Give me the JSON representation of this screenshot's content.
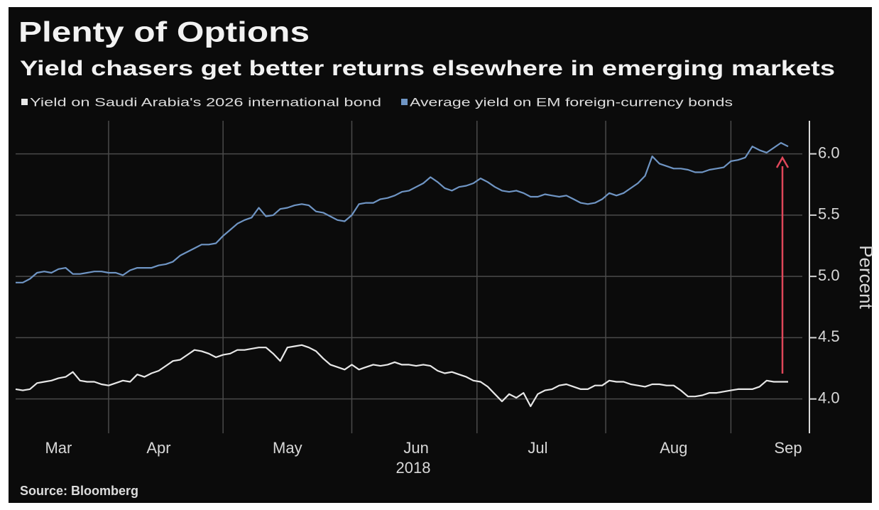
{
  "chart_data": {
    "type": "line",
    "title": "Plenty of Options",
    "subtitle": "Yield chasers get better returns elsewhere in emerging markets",
    "source": "Source: Bloomberg",
    "y_label": "Percent",
    "x_sublabel": "2018",
    "categories": [
      null,
      null,
      null,
      null,
      null,
      null,
      "Mar",
      null,
      null,
      null,
      null,
      null,
      null,
      null,
      null,
      null,
      null,
      null,
      null,
      null,
      "Apr",
      null,
      null,
      null,
      null,
      null,
      null,
      null,
      null,
      null,
      null,
      null,
      null,
      null,
      null,
      null,
      null,
      null,
      "May",
      null,
      null,
      null,
      null,
      null,
      null,
      null,
      null,
      null,
      null,
      null,
      null,
      null,
      null,
      null,
      null,
      null,
      "Jun",
      null,
      null,
      null,
      null,
      null,
      null,
      null,
      null,
      null,
      null,
      null,
      null,
      null,
      null,
      null,
      null,
      "Jul",
      null,
      null,
      null,
      null,
      null,
      null,
      null,
      null,
      null,
      null,
      null,
      null,
      null,
      null,
      null,
      null,
      null,
      null,
      "Aug",
      null,
      null,
      null,
      null,
      null,
      null,
      null,
      null,
      null,
      null,
      null,
      null,
      null,
      null,
      null,
      "Sep"
    ],
    "series": [
      {
        "name": "Yield on Saudi Arabia's 2026 international bond",
        "color": "#e8e8e8",
        "values": [
          4.08,
          4.07,
          4.08,
          4.13,
          4.14,
          4.15,
          4.17,
          4.18,
          4.22,
          4.15,
          4.14,
          4.14,
          4.12,
          4.11,
          4.13,
          4.15,
          4.14,
          4.2,
          4.18,
          4.21,
          4.23,
          4.27,
          4.31,
          4.32,
          4.36,
          4.4,
          4.39,
          4.37,
          4.34,
          4.36,
          4.37,
          4.4,
          4.4,
          4.41,
          4.42,
          4.42,
          4.37,
          4.31,
          4.42,
          4.43,
          4.44,
          4.42,
          4.39,
          4.33,
          4.28,
          4.26,
          4.24,
          4.28,
          4.24,
          4.26,
          4.28,
          4.27,
          4.28,
          4.3,
          4.28,
          4.28,
          4.27,
          4.28,
          4.27,
          4.23,
          4.21,
          4.22,
          4.2,
          4.18,
          4.15,
          4.14,
          4.1,
          4.04,
          3.98,
          4.04,
          4.01,
          4.05,
          3.94,
          4.04,
          4.07,
          4.08,
          4.11,
          4.12,
          4.1,
          4.08,
          4.08,
          4.11,
          4.11,
          4.15,
          4.14,
          4.14,
          4.12,
          4.11,
          4.1,
          4.12,
          4.12,
          4.11,
          4.11,
          4.07,
          4.02,
          4.02,
          4.03,
          4.05,
          4.05,
          4.06,
          4.07,
          4.08,
          4.08,
          4.08,
          4.1,
          4.15,
          4.14,
          4.14,
          4.14
        ]
      },
      {
        "name": "Average yield on EM foreign-currency bonds",
        "color": "#6f95c4",
        "values": [
          4.95,
          4.95,
          4.98,
          5.03,
          5.04,
          5.03,
          5.06,
          5.07,
          5.02,
          5.02,
          5.03,
          5.04,
          5.04,
          5.03,
          5.03,
          5.01,
          5.05,
          5.07,
          5.07,
          5.07,
          5.09,
          5.1,
          5.12,
          5.17,
          5.2,
          5.23,
          5.26,
          5.26,
          5.27,
          5.33,
          5.38,
          5.43,
          5.46,
          5.48,
          5.56,
          5.49,
          5.5,
          5.55,
          5.56,
          5.58,
          5.59,
          5.58,
          5.53,
          5.52,
          5.49,
          5.46,
          5.45,
          5.5,
          5.59,
          5.6,
          5.6,
          5.63,
          5.64,
          5.66,
          5.69,
          5.7,
          5.73,
          5.76,
          5.81,
          5.77,
          5.72,
          5.7,
          5.73,
          5.74,
          5.76,
          5.8,
          5.77,
          5.73,
          5.7,
          5.69,
          5.7,
          5.68,
          5.65,
          5.65,
          5.67,
          5.66,
          5.65,
          5.66,
          5.63,
          5.6,
          5.59,
          5.6,
          5.63,
          5.68,
          5.66,
          5.68,
          5.72,
          5.76,
          5.82,
          5.98,
          5.92,
          5.9,
          5.88,
          5.88,
          5.87,
          5.85,
          5.85,
          5.87,
          5.88,
          5.89,
          5.94,
          5.95,
          5.97,
          6.06,
          6.03,
          6.01,
          6.05,
          6.09,
          6.06
        ]
      }
    ],
    "ylim": [
      3.72,
      6.27
    ],
    "yticks": [
      {
        "value": 4,
        "label": "4.0"
      },
      4.5,
      {
        "value": 5,
        "label": "5.0"
      },
      5.5,
      {
        "value": 6,
        "label": "6.0"
      }
    ],
    "grid": true
  }
}
